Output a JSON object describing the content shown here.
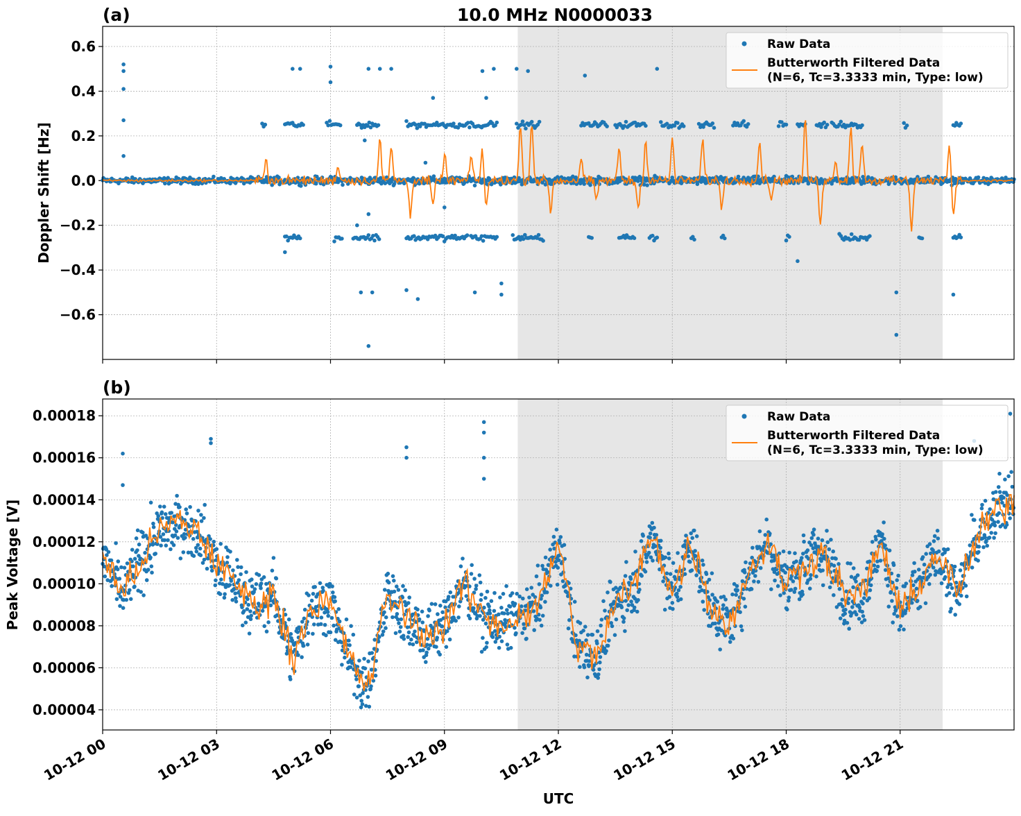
{
  "title": "10.0 MHz N0000033",
  "colors": {
    "raw": "#1f77b4",
    "filtered": "#ff7f0e",
    "shade": "#e6e6e6",
    "grid": "#b0b0b0"
  },
  "chart_data": [
    {
      "type": "scatter",
      "panel_label": "(a)",
      "ylabel": "Doppler Shift [Hz]",
      "xlabel": "",
      "xlim_hours": [
        0,
        24
      ],
      "ylim": [
        -0.8,
        0.69
      ],
      "yticks": [
        0.6,
        0.4,
        0.2,
        0.0,
        -0.2,
        -0.4,
        -0.6
      ],
      "ytick_labels": [
        "0.6",
        "0.4",
        "0.2",
        "0.0",
        "−0.2",
        "−0.4",
        "−0.6"
      ],
      "grid": true,
      "shaded_region_hours": [
        10.93,
        22.12
      ],
      "legend": {
        "placement": "top-right",
        "entries": [
          "Raw Data",
          "Butterworth Filtered Data\n(N=6, Tc=3.3333 min, Type: low)"
        ],
        "line1": "Butterworth Filtered Data",
        "line2": "(N=6, Tc=3.3333 min, Type: low)"
      },
      "series": [
        {
          "name": "Raw Data",
          "kind": "scatter",
          "core_band": 0.025,
          "clusters_pos": [
            [
              4.2,
              4.3
            ],
            [
              4.8,
              5.3
            ],
            [
              5.9,
              6.3
            ],
            [
              6.7,
              7.3
            ],
            [
              8.0,
              9.5
            ],
            [
              9.5,
              10.4
            ],
            [
              10.9,
              11.5
            ],
            [
              12.6,
              13.3
            ],
            [
              13.5,
              14.3
            ],
            [
              14.7,
              15.3
            ],
            [
              15.7,
              16.1
            ],
            [
              16.6,
              17.0
            ],
            [
              17.8,
              18.0
            ],
            [
              18.3,
              18.5
            ],
            [
              18.8,
              19.1
            ],
            [
              19.2,
              20.0
            ],
            [
              21.1,
              21.2
            ],
            [
              22.4,
              22.6
            ]
          ],
          "clusters_neg": [
            [
              4.8,
              5.2
            ],
            [
              6.1,
              6.3
            ],
            [
              6.6,
              7.3
            ],
            [
              8.0,
              9.6
            ],
            [
              9.7,
              10.4
            ],
            [
              10.8,
              11.6
            ],
            [
              12.8,
              12.9
            ],
            [
              13.6,
              14.0
            ],
            [
              14.4,
              14.6
            ],
            [
              15.5,
              15.6
            ],
            [
              16.3,
              16.4
            ],
            [
              18.0,
              18.1
            ],
            [
              19.4,
              20.2
            ],
            [
              21.5,
              21.6
            ],
            [
              22.4,
              22.6
            ]
          ],
          "outliers": [
            [
              0.55,
              0.52
            ],
            [
              0.55,
              0.49
            ],
            [
              0.55,
              0.41
            ],
            [
              0.55,
              0.27
            ],
            [
              0.55,
              0.11
            ],
            [
              5.0,
              0.5
            ],
            [
              5.2,
              0.5
            ],
            [
              6.0,
              0.51
            ],
            [
              6.0,
              0.44
            ],
            [
              7.0,
              0.5
            ],
            [
              7.3,
              0.5
            ],
            [
              7.6,
              0.5
            ],
            [
              10.0,
              0.49
            ],
            [
              10.3,
              0.5
            ],
            [
              10.9,
              0.5
            ],
            [
              11.2,
              0.49
            ],
            [
              12.7,
              0.47
            ],
            [
              14.6,
              0.5
            ],
            [
              7.0,
              -0.74
            ],
            [
              6.8,
              -0.5
            ],
            [
              7.1,
              -0.5
            ],
            [
              8.0,
              -0.49
            ],
            [
              8.3,
              -0.53
            ],
            [
              9.8,
              -0.5
            ],
            [
              10.5,
              -0.46
            ],
            [
              10.5,
              -0.51
            ],
            [
              20.9,
              -0.5
            ],
            [
              20.9,
              -0.69
            ],
            [
              22.4,
              -0.51
            ],
            [
              18.3,
              -0.36
            ],
            [
              4.8,
              -0.32
            ],
            [
              8.7,
              0.37
            ],
            [
              10.1,
              0.37
            ],
            [
              6.7,
              -0.2
            ],
            [
              7.0,
              -0.15
            ],
            [
              6.9,
              0.18
            ],
            [
              8.5,
              0.08
            ],
            [
              9.0,
              -0.12
            ]
          ]
        },
        {
          "name": "Butterworth Filtered Data",
          "kind": "line",
          "spikes": [
            [
              4.3,
              0.11
            ],
            [
              6.2,
              0.07
            ],
            [
              7.3,
              0.18
            ],
            [
              7.6,
              0.15
            ],
            [
              8.1,
              -0.15
            ],
            [
              8.7,
              -0.12
            ],
            [
              9.0,
              0.12
            ],
            [
              9.7,
              0.11
            ],
            [
              10.0,
              0.14
            ],
            [
              10.1,
              -0.12
            ],
            [
              11.0,
              0.25
            ],
            [
              11.3,
              0.27
            ],
            [
              11.8,
              -0.14
            ],
            [
              12.6,
              0.1
            ],
            [
              13.0,
              -0.1
            ],
            [
              13.6,
              0.15
            ],
            [
              14.1,
              -0.13
            ],
            [
              14.3,
              0.18
            ],
            [
              15.0,
              0.19
            ],
            [
              15.8,
              0.19
            ],
            [
              16.3,
              -0.12
            ],
            [
              17.3,
              0.18
            ],
            [
              17.6,
              -0.08
            ],
            [
              18.5,
              0.27
            ],
            [
              18.9,
              -0.19
            ],
            [
              19.3,
              0.1
            ],
            [
              19.7,
              0.25
            ],
            [
              20.0,
              0.18
            ],
            [
              21.3,
              -0.22
            ],
            [
              22.3,
              0.16
            ],
            [
              22.4,
              -0.16
            ]
          ]
        }
      ]
    },
    {
      "type": "scatter",
      "panel_label": "(b)",
      "ylabel": "Peak Voltage [V]",
      "xlabel": "UTC",
      "xlim_hours": [
        0,
        24
      ],
      "ylim": [
        3.04e-05,
        0.000188
      ],
      "yticks": [
        0.00018,
        0.00016,
        0.00014,
        0.00012,
        0.0001,
        8e-05,
        6e-05,
        4e-05
      ],
      "ytick_labels": [
        "0.00018",
        "0.00016",
        "0.00014",
        "0.00012",
        "0.00010",
        "0.00008",
        "0.00006",
        "0.00004"
      ],
      "xtick_hours": [
        0,
        3,
        6,
        9,
        12,
        15,
        18,
        21
      ],
      "xtick_labels": [
        "10-12 00",
        "10-12 03",
        "10-12 06",
        "10-12 09",
        "10-12 12",
        "10-12 15",
        "10-12 18",
        "10-12 21"
      ],
      "grid": true,
      "shaded_region_hours": [
        10.93,
        22.12
      ],
      "legend": {
        "placement": "top-right",
        "line1": "Butterworth Filtered Data",
        "line2": "(N=6, Tc=3.3333 min, Type: low)",
        "raw": "Raw Data"
      },
      "series": [
        {
          "name": "Butterworth Filtered Data",
          "kind": "line",
          "x_hours_step": 0.5,
          "values": [
            0.000115,
            9.5e-05,
            0.00011,
            0.000125,
            0.00013,
            0.000125,
            0.00011,
            0.0001,
            9e-05,
            9.5e-05,
            6.5e-05,
            9e-05,
            9e-05,
            6.5e-05,
            5e-05,
            9.5e-05,
            8.5e-05,
            7.5e-05,
            8e-05,
            0.0001,
            8.5e-05,
            8e-05,
            8.5e-05,
            9e-05,
            0.00012,
            7e-05,
            6.5e-05,
            9e-05,
            0.0001,
            0.000125,
            9.5e-05,
            0.00012,
            9e-05,
            8e-05,
            0.000105,
            0.00012,
            0.0001,
            0.00011,
            0.000115,
            9.5e-05,
            9.5e-05,
            0.00012,
            8.5e-05,
            0.0001,
            0.000115,
            9.5e-05,
            0.00012,
            0.000135,
            0.00014
          ]
        },
        {
          "name": "Raw Data",
          "kind": "scatter",
          "spread": 2e-05,
          "outliers": [
            [
              0.53,
              0.000162
            ],
            [
              0.53,
              0.000147
            ],
            [
              2.85,
              0.000169
            ],
            [
              2.85,
              0.000167
            ],
            [
              8.0,
              0.000165
            ],
            [
              8.0,
              0.00016
            ],
            [
              10.04,
              0.000177
            ],
            [
              10.04,
              0.000172
            ],
            [
              10.04,
              0.00016
            ],
            [
              10.04,
              0.00015
            ],
            [
              22.95,
              0.000168
            ],
            [
              23.9,
              0.000181
            ]
          ]
        }
      ]
    }
  ]
}
